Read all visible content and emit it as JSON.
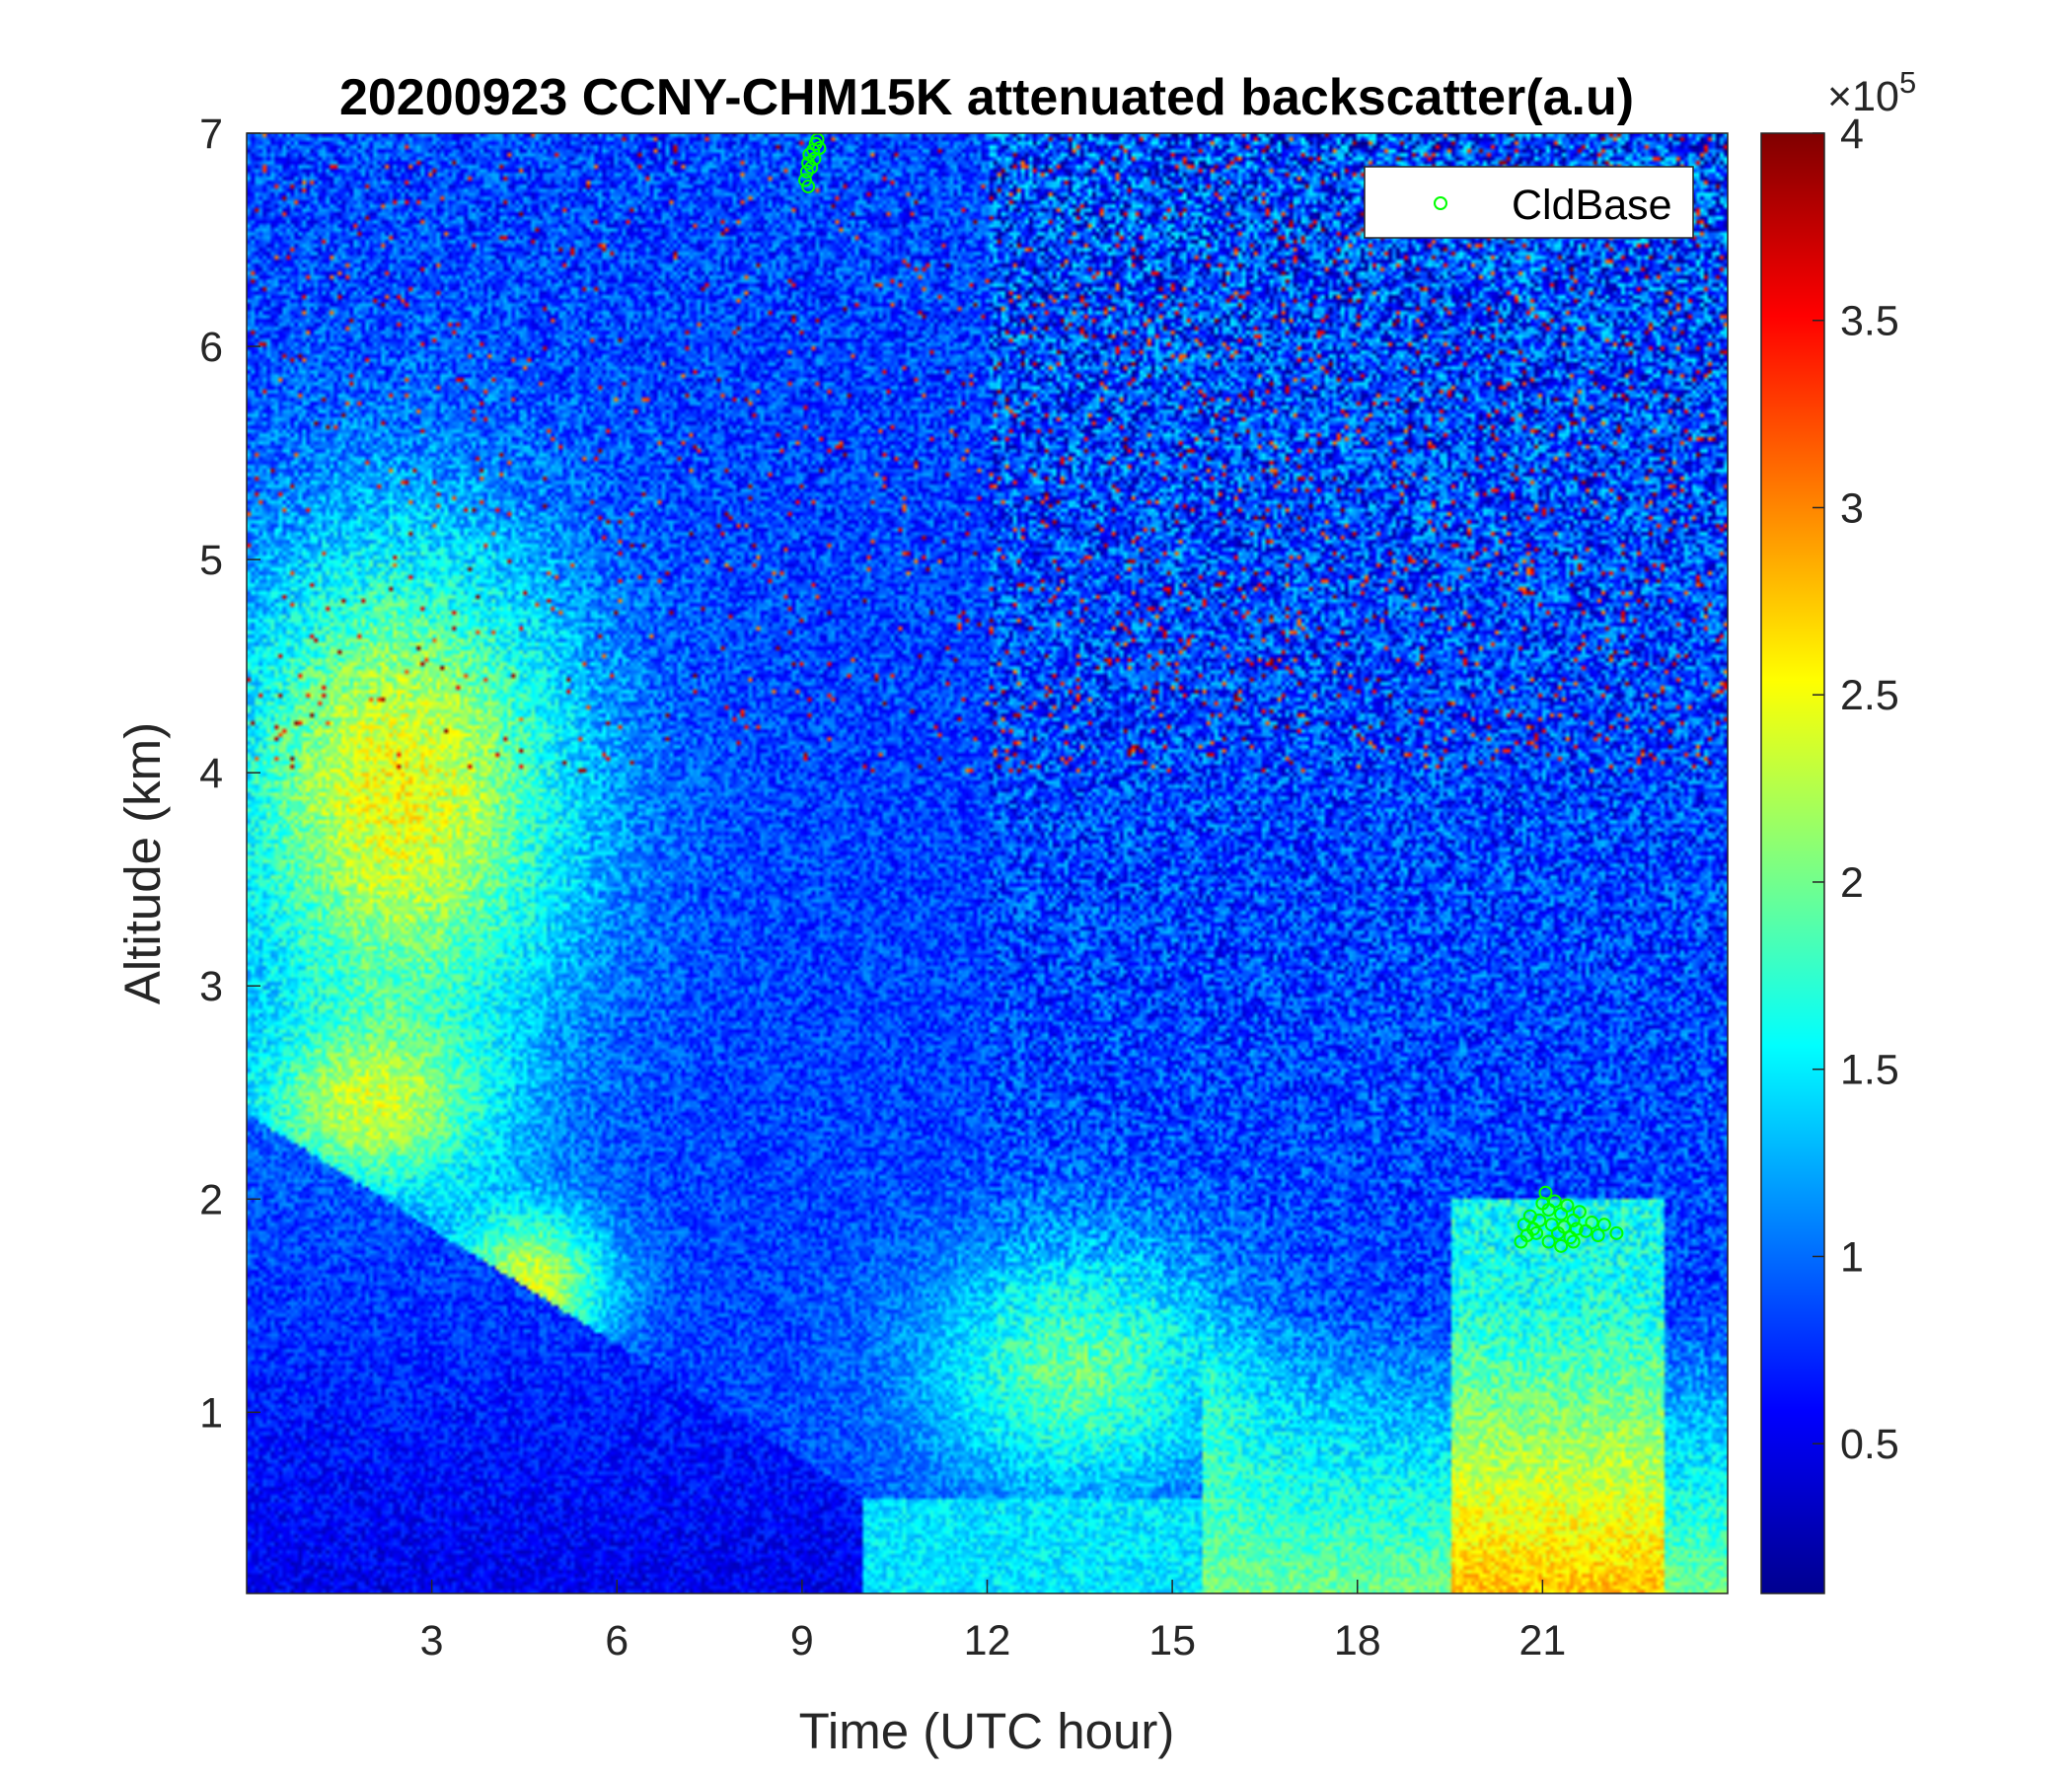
{
  "chart_data": {
    "type": "heatmap",
    "title": "20200923 CCNY-CHM15K attenuated backscatter(a.u)",
    "xlabel": "Time (UTC hour)",
    "ylabel": "Altitude (km)",
    "xlim": [
      0,
      24
    ],
    "ylim": [
      0.15,
      7
    ],
    "xticks": [
      3,
      6,
      9,
      12,
      15,
      18,
      21
    ],
    "yticks": [
      1,
      2,
      3,
      4,
      5,
      6,
      7
    ],
    "colormap": "jet",
    "colorbar": {
      "range": [
        0.1,
        4
      ],
      "ticks": [
        0.5,
        1,
        1.5,
        2,
        2.5,
        3,
        3.5,
        4
      ],
      "multiplier_base": "×10",
      "multiplier_exp": "5"
    },
    "legend": {
      "placement": "top-right",
      "entries": [
        "CldBase"
      ]
    },
    "series": [
      {
        "name": "CldBase",
        "marker": "circle-open",
        "color": "#00ff00",
        "points": [
          [
            9.05,
            6.78
          ],
          [
            9.08,
            6.82
          ],
          [
            9.1,
            6.86
          ],
          [
            9.12,
            6.9
          ],
          [
            9.15,
            6.84
          ],
          [
            9.18,
            6.92
          ],
          [
            9.2,
            6.88
          ],
          [
            9.22,
            6.95
          ],
          [
            9.25,
            6.97
          ],
          [
            9.28,
            6.93
          ],
          [
            9.1,
            6.75
          ],
          [
            20.65,
            1.8
          ],
          [
            20.7,
            1.88
          ],
          [
            20.75,
            1.83
          ],
          [
            20.8,
            1.92
          ],
          [
            20.85,
            1.86
          ],
          [
            20.95,
            1.9
          ],
          [
            21.0,
            1.98
          ],
          [
            21.05,
            2.03
          ],
          [
            21.1,
            1.95
          ],
          [
            21.15,
            1.88
          ],
          [
            21.2,
            1.99
          ],
          [
            21.25,
            1.84
          ],
          [
            21.3,
            1.93
          ],
          [
            21.35,
            1.87
          ],
          [
            21.4,
            1.97
          ],
          [
            21.45,
            1.82
          ],
          [
            21.5,
            1.9
          ],
          [
            21.55,
            1.86
          ],
          [
            21.6,
            1.94
          ],
          [
            21.7,
            1.85
          ],
          [
            21.8,
            1.89
          ],
          [
            21.9,
            1.83
          ],
          [
            22.0,
            1.88
          ],
          [
            22.2,
            1.84
          ],
          [
            21.1,
            1.8
          ],
          [
            21.3,
            1.78
          ],
          [
            21.5,
            1.8
          ],
          [
            20.9,
            1.84
          ]
        ]
      }
    ]
  }
}
